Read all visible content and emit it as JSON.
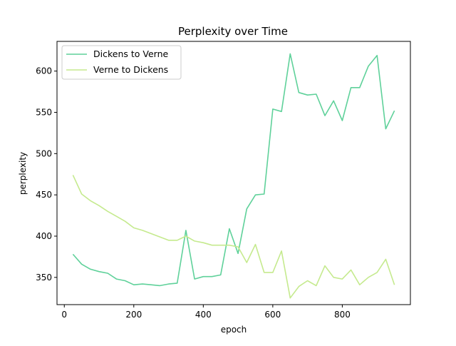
{
  "chart_data": {
    "type": "line",
    "title": "Perplexity over Time",
    "xlabel": "epoch",
    "ylabel": "perplexity",
    "xlim": [
      -21,
      996
    ],
    "ylim": [
      317,
      636
    ],
    "xticks": [
      0,
      200,
      400,
      600,
      800
    ],
    "yticks": [
      350,
      400,
      450,
      500,
      550,
      600
    ],
    "grid": false,
    "legend_position": "top-left",
    "x": [
      25,
      50,
      75,
      100,
      125,
      150,
      175,
      200,
      225,
      250,
      275,
      300,
      325,
      350,
      375,
      400,
      425,
      450,
      475,
      500,
      525,
      550,
      575,
      600,
      625,
      650,
      675,
      700,
      725,
      750,
      775,
      800,
      825,
      850,
      875,
      900,
      925,
      950
    ],
    "series": [
      {
        "name": "Dickens to Verne",
        "color": "#5fd19a",
        "values": [
          378,
          366,
          360,
          357,
          355,
          348,
          346,
          341,
          342,
          341,
          340,
          342,
          343,
          407,
          348,
          351,
          351,
          353,
          409,
          379,
          433,
          450,
          451,
          554,
          551,
          621,
          574,
          571,
          572,
          546,
          564,
          540,
          580,
          580,
          606,
          619,
          530,
          552
        ]
      },
      {
        "name": "Verne to Dickens",
        "color": "#c5ea8e",
        "values": [
          474,
          451,
          443,
          437,
          430,
          424,
          418,
          410,
          407,
          403,
          399,
          395,
          395,
          400,
          394,
          392,
          389,
          389,
          389,
          387,
          368,
          390,
          356,
          356,
          382,
          325,
          339,
          346,
          340,
          364,
          350,
          348,
          359,
          341,
          350,
          356,
          372,
          341
        ]
      }
    ]
  }
}
